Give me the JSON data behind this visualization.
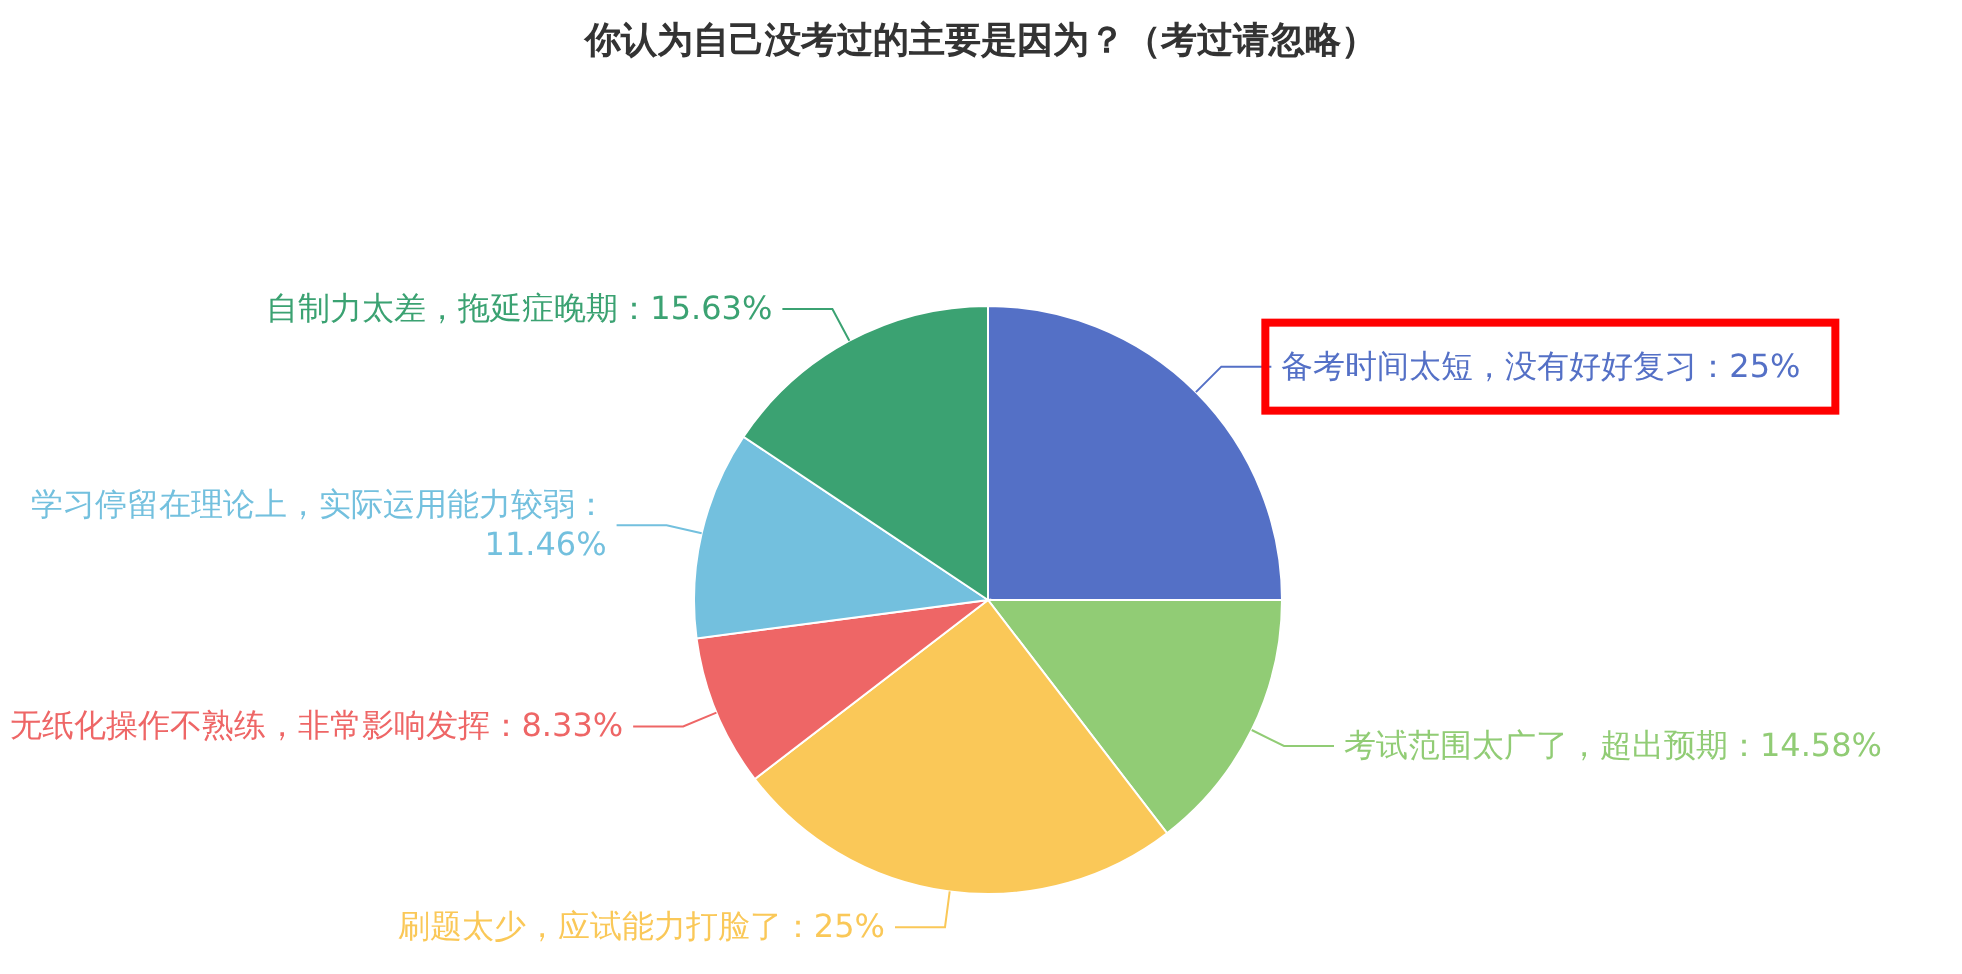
{
  "chart_data": {
    "type": "pie",
    "title": "你认为自己没考过的主要是因为？（考过请忽略）",
    "categories": [
      "备考时间太短，没有好好复习",
      "考试范围太广了，超出预期",
      "刷题太少，应试能力打脸了",
      "无纸化操作不熟练，非常影响发挥",
      "学习停留在理论上，实际运用能力较弱",
      "自制力太差，拖延症晚期"
    ],
    "values": [
      25,
      14.58,
      25,
      8.33,
      11.46,
      15.63
    ],
    "colors": [
      "#5470c6",
      "#91cc75",
      "#fac858",
      "#ee6666",
      "#73c0de",
      "#3ba272"
    ],
    "value_labels": [
      "：25%",
      "：14.58%",
      "：25%",
      "：8.33%",
      "：11.46%",
      "：15.63%"
    ]
  }
}
